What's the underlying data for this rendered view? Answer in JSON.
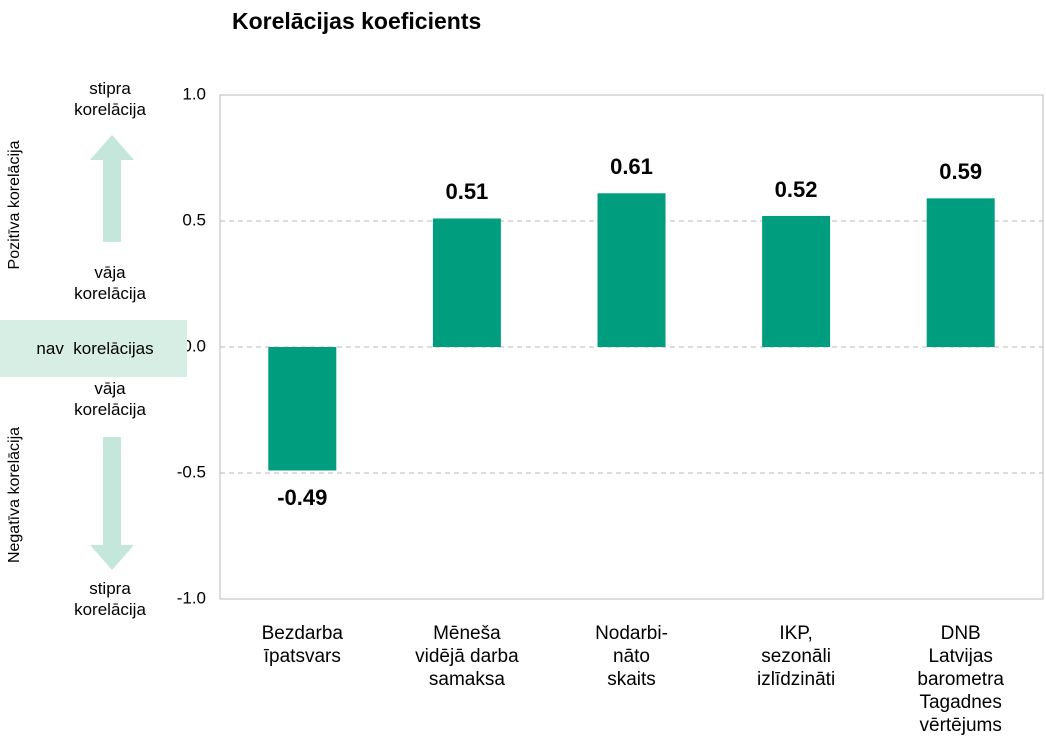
{
  "chart_data": {
    "type": "bar",
    "title": "Korelācijas koeficients",
    "categories": [
      "Bezdarba\nīpatsvars",
      "Mēneša\nvidējā darba\nsamaksa",
      "Nodarbi-\nnāto\nskaits",
      "IKP,\nsezonāli\nizlīdzināti",
      "DNB\nLatvijas\nbarometra\nTagadnes\nvērtējums"
    ],
    "values": [
      -0.49,
      0.51,
      0.61,
      0.52,
      0.59
    ],
    "color": "#009e7e",
    "ylim": [
      -1,
      1
    ],
    "yticks": [
      {
        "value": -1,
        "label": "-1.0"
      },
      -0.5,
      {
        "value": 0,
        "label": "0.0"
      },
      0.5,
      {
        "value": 1,
        "label": "1.0"
      }
    ],
    "grid": true,
    "annotations": {
      "positive_axis": "Pozitīva korelācija",
      "negative_axis": "Negatīva korelācija",
      "strong_positive": "stipra\nkorelācija",
      "weak_positive": "vāja\nkorelācija",
      "none": "nav  korelācijas",
      "weak_negative": "vāja\nkorelācija",
      "strong_negative": "stipra\nkorelācija"
    }
  }
}
